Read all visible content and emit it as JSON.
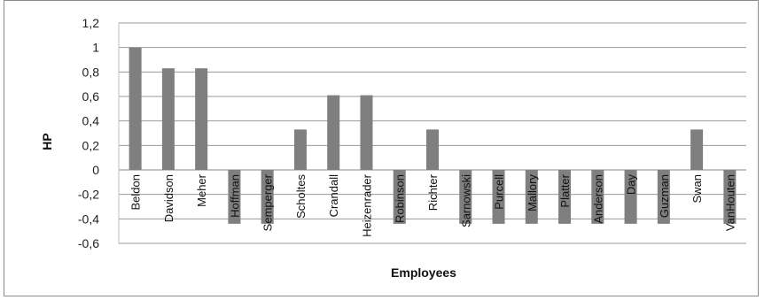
{
  "chart_data": {
    "type": "bar",
    "xlabel": "Employees",
    "ylabel": "HP",
    "ylim": [
      -0.6,
      1.2
    ],
    "yticks": [
      "1,2",
      "1",
      "0,8",
      "0,6",
      "0,4",
      "0,2",
      "0",
      "-0,2",
      "-0,4",
      "-0,6"
    ],
    "ytick_values": [
      1.2,
      1.0,
      0.8,
      0.6,
      0.4,
      0.2,
      0.0,
      -0.2,
      -0.4,
      -0.6
    ],
    "grid": true,
    "bar_color": "#7f7f7f",
    "categories": [
      "Beldon",
      "Davidson",
      "Meher",
      "Hoffman",
      "Semperger",
      "Scholtes",
      "Crandall",
      "Heizenrader",
      "Robinson",
      "Richter",
      "Sarnowski",
      "Purcell",
      "Mallory",
      "Platter",
      "Anderson",
      "Day",
      "Guzman",
      "Swan",
      "VanHouten"
    ],
    "values": [
      1.0,
      0.83,
      0.83,
      -0.44,
      -0.44,
      0.33,
      0.61,
      0.61,
      -0.44,
      0.33,
      -0.44,
      -0.44,
      -0.44,
      -0.44,
      -0.44,
      -0.44,
      -0.44,
      0.33,
      -0.44
    ]
  }
}
